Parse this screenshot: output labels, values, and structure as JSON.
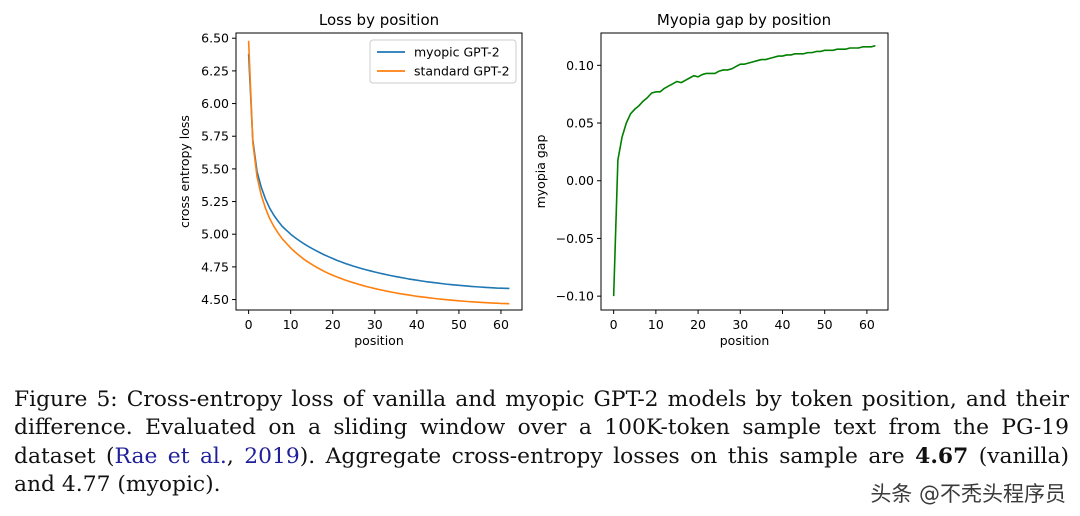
{
  "chart_data": [
    {
      "type": "line",
      "title": "Loss by position",
      "xlabel": "position",
      "ylabel": "cross entropy loss",
      "xlim": [
        -3,
        65
      ],
      "ylim": [
        4.42,
        6.54
      ],
      "xticks": [
        0,
        10,
        20,
        30,
        40,
        50,
        60
      ],
      "yticks": [
        4.5,
        4.75,
        5.0,
        5.25,
        5.5,
        5.75,
        6.0,
        6.25,
        6.5
      ],
      "ytick_labels": [
        "4.50",
        "4.75",
        "5.00",
        "5.25",
        "5.50",
        "5.75",
        "6.00",
        "6.25",
        "6.50"
      ],
      "legend_position": "top-right",
      "x": [
        0,
        1,
        2,
        3,
        4,
        5,
        6,
        7,
        8,
        9,
        10,
        11,
        12,
        13,
        14,
        15,
        16,
        17,
        18,
        19,
        20,
        21,
        22,
        23,
        24,
        25,
        26,
        27,
        28,
        29,
        30,
        31,
        32,
        33,
        34,
        35,
        36,
        37,
        38,
        39,
        40,
        41,
        42,
        43,
        44,
        45,
        46,
        47,
        48,
        49,
        50,
        51,
        52,
        53,
        54,
        55,
        56,
        57,
        58,
        59,
        60,
        61,
        62
      ],
      "series": [
        {
          "name": "myopic GPT-2",
          "color": "#1f77b4",
          "values": [
            6.38,
            5.72,
            5.48,
            5.36,
            5.27,
            5.2,
            5.145,
            5.1,
            5.06,
            5.03,
            5.0,
            4.975,
            4.952,
            4.93,
            4.91,
            4.892,
            4.875,
            4.858,
            4.842,
            4.828,
            4.814,
            4.8,
            4.788,
            4.776,
            4.765,
            4.755,
            4.745,
            4.736,
            4.727,
            4.719,
            4.711,
            4.703,
            4.696,
            4.689,
            4.682,
            4.676,
            4.67,
            4.664,
            4.658,
            4.653,
            4.648,
            4.643,
            4.638,
            4.634,
            4.63,
            4.626,
            4.622,
            4.618,
            4.615,
            4.612,
            4.609,
            4.606,
            4.603,
            4.6,
            4.598,
            4.596,
            4.594,
            4.592,
            4.59,
            4.588,
            4.587,
            4.586,
            4.585
          ]
        },
        {
          "name": "standard GPT-2",
          "color": "#ff7f0e",
          "values": [
            6.48,
            5.7,
            5.44,
            5.3,
            5.2,
            5.12,
            5.06,
            5.01,
            4.965,
            4.93,
            4.895,
            4.865,
            4.838,
            4.812,
            4.79,
            4.77,
            4.75,
            4.732,
            4.715,
            4.7,
            4.686,
            4.673,
            4.661,
            4.649,
            4.638,
            4.628,
            4.618,
            4.609,
            4.6,
            4.592,
            4.584,
            4.577,
            4.57,
            4.563,
            4.557,
            4.551,
            4.545,
            4.54,
            4.535,
            4.53,
            4.525,
            4.521,
            4.517,
            4.513,
            4.509,
            4.505,
            4.502,
            4.499,
            4.496,
            4.493,
            4.49,
            4.488,
            4.485,
            4.483,
            4.481,
            4.479,
            4.477,
            4.475,
            4.473,
            4.472,
            4.47,
            4.469,
            4.468
          ]
        }
      ]
    },
    {
      "type": "line",
      "title": "Myopia gap by position",
      "xlabel": "position",
      "ylabel": "myopia gap",
      "xlim": [
        -3,
        65
      ],
      "ylim": [
        -0.112,
        0.128
      ],
      "xticks": [
        0,
        10,
        20,
        30,
        40,
        50,
        60
      ],
      "yticks": [
        -0.1,
        -0.05,
        0.0,
        0.05,
        0.1
      ],
      "ytick_labels": [
        "−0.10",
        "−0.05",
        "0.00",
        "0.05",
        "0.10"
      ],
      "x": [
        0,
        1,
        2,
        3,
        4,
        5,
        6,
        7,
        8,
        9,
        10,
        11,
        12,
        13,
        14,
        15,
        16,
        17,
        18,
        19,
        20,
        21,
        22,
        23,
        24,
        25,
        26,
        27,
        28,
        29,
        30,
        31,
        32,
        33,
        34,
        35,
        36,
        37,
        38,
        39,
        40,
        41,
        42,
        43,
        44,
        45,
        46,
        47,
        48,
        49,
        50,
        51,
        52,
        53,
        54,
        55,
        56,
        57,
        58,
        59,
        60,
        61,
        62
      ],
      "series": [
        {
          "name": "myopia gap",
          "color": "#008000",
          "values": [
            -0.1,
            0.018,
            0.038,
            0.05,
            0.058,
            0.062,
            0.065,
            0.069,
            0.072,
            0.076,
            0.077,
            0.077,
            0.08,
            0.082,
            0.084,
            0.086,
            0.085,
            0.087,
            0.089,
            0.091,
            0.09,
            0.092,
            0.093,
            0.093,
            0.093,
            0.095,
            0.096,
            0.096,
            0.097,
            0.099,
            0.101,
            0.101,
            0.102,
            0.103,
            0.104,
            0.105,
            0.105,
            0.106,
            0.107,
            0.108,
            0.108,
            0.109,
            0.109,
            0.11,
            0.11,
            0.11,
            0.111,
            0.111,
            0.112,
            0.112,
            0.113,
            0.113,
            0.113,
            0.114,
            0.114,
            0.114,
            0.115,
            0.115,
            0.115,
            0.116,
            0.116,
            0.116,
            0.117
          ]
        }
      ]
    }
  ],
  "caption": {
    "part1": "Figure 5: Cross-entropy loss of vanilla and myopic GPT-2 models by token position, and their difference. Evaluated on a sliding window over a 100K-token sample text from the PG-19 dataset (",
    "citation_authors": "Rae et al.",
    "citation_sep": ", ",
    "citation_year": "2019",
    "part2": ").  Aggregate cross-entropy losses on this sample are ",
    "vanilla_value": "4.67",
    "part3": " (vanilla) and 4.77 (myopic)."
  },
  "watermark": "头条 @不秃头程序员"
}
